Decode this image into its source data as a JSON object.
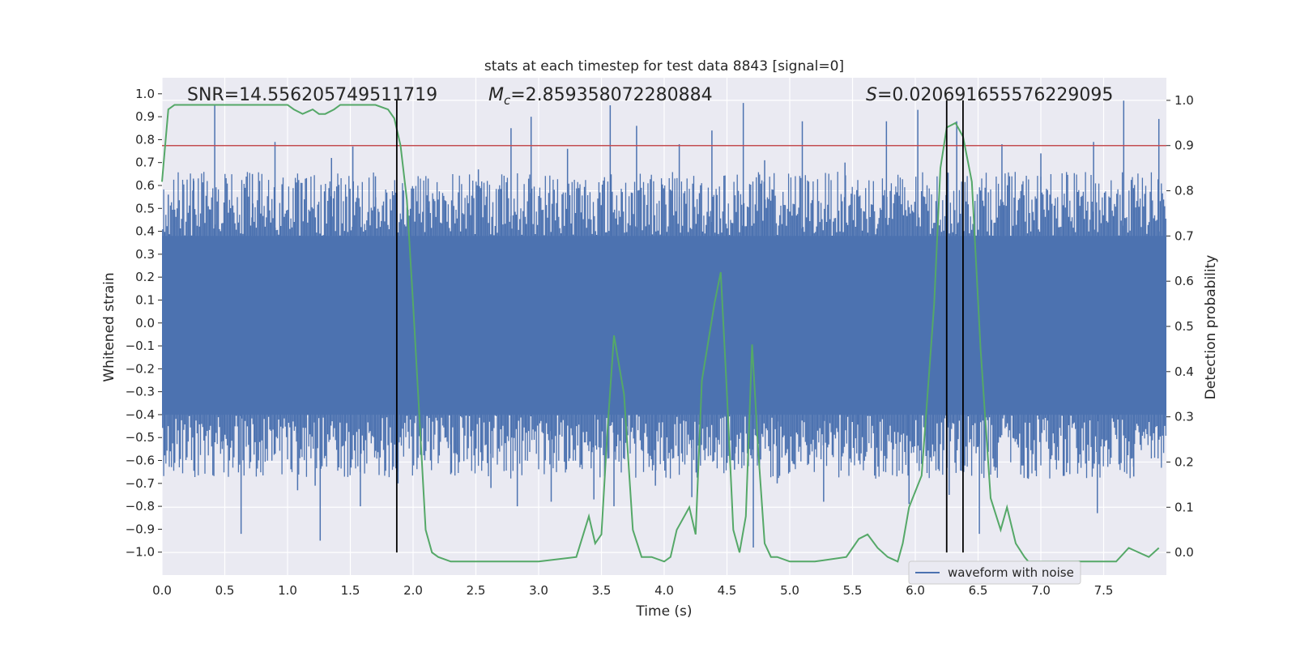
{
  "chart_data": {
    "type": "line",
    "title": "stats at each timestep for test data 8843 [signal=0]",
    "xlabel": "Time (s)",
    "ylabel_left": "Whitened strain",
    "ylabel_right": "Detection probability",
    "xlim": [
      0.0,
      8.0
    ],
    "ylim_left": [
      -1.1,
      1.07
    ],
    "ylim_right": [
      -0.05,
      1.05
    ],
    "x_ticks": [
      0.0,
      0.5,
      1.0,
      1.5,
      2.0,
      2.5,
      3.0,
      3.5,
      4.0,
      4.5,
      5.0,
      5.5,
      6.0,
      6.5,
      7.0,
      7.5
    ],
    "x_tick_labels": [
      "0.0",
      "0.5",
      "1.0",
      "1.5",
      "2.0",
      "2.5",
      "3.0",
      "3.5",
      "4.0",
      "4.5",
      "5.0",
      "5.5",
      "6.0",
      "6.5",
      "7.0",
      "7.5"
    ],
    "y_left_ticks": [
      1.0,
      0.9,
      0.8,
      0.7,
      0.6,
      0.5,
      0.4,
      0.3,
      0.2,
      0.1,
      0.0,
      -0.1,
      -0.2,
      -0.3,
      -0.4,
      -0.5,
      -0.6,
      -0.7,
      -0.8,
      -0.9,
      -1.0
    ],
    "y_left_tick_labels": [
      "1.0",
      "0.9",
      "0.8",
      "0.7",
      "0.6",
      "0.5",
      "0.4",
      "0.3",
      "0.2",
      "0.1",
      "0.0",
      "−0.1",
      "−0.2",
      "−0.3",
      "−0.4",
      "−0.5",
      "−0.6",
      "−0.7",
      "−0.8",
      "−0.9",
      "−1.0"
    ],
    "y_right_ticks": [
      1.0,
      0.9,
      0.8,
      0.7,
      0.6,
      0.5,
      0.4,
      0.3,
      0.2,
      0.1,
      0.0
    ],
    "y_right_tick_labels": [
      "1.0",
      "0.9",
      "0.8",
      "0.7",
      "0.6",
      "0.5",
      "0.4",
      "0.3",
      "0.2",
      "0.1",
      "0.0"
    ],
    "annotations": {
      "snr": "SNR=14.556205749511719",
      "mc_symbol": "M",
      "mc_subscript": "c",
      "mc_value": "=2.859358072280884",
      "s_symbol": "S",
      "s_value": "=0.020691655576229095"
    },
    "threshold": {
      "axis": "right",
      "value": 0.9,
      "color": "#c44e52"
    },
    "vertical_lines": [
      1.87,
      6.25,
      6.38
    ],
    "waveform": {
      "name": "waveform with noise",
      "color": "#4c72b0",
      "band_upper": 0.38,
      "band_lower": -0.4,
      "bursts": [
        {
          "x": 0.05,
          "y": 0.56
        },
        {
          "x": 0.25,
          "y": 0.63
        },
        {
          "x": 0.42,
          "y": 0.95
        },
        {
          "x": 0.48,
          "y": -0.55
        },
        {
          "x": 0.63,
          "y": -0.92
        },
        {
          "x": 0.72,
          "y": 0.65
        },
        {
          "x": 0.9,
          "y": 0.79
        },
        {
          "x": 1.08,
          "y": -0.73
        },
        {
          "x": 1.22,
          "y": -0.71
        },
        {
          "x": 1.26,
          "y": -0.95
        },
        {
          "x": 1.35,
          "y": 0.72
        },
        {
          "x": 1.52,
          "y": 0.77
        },
        {
          "x": 1.58,
          "y": -0.8
        },
        {
          "x": 1.7,
          "y": 0.64
        },
        {
          "x": 1.88,
          "y": -0.7
        },
        {
          "x": 2.12,
          "y": 0.63
        },
        {
          "x": 2.3,
          "y": -0.66
        },
        {
          "x": 2.52,
          "y": 0.67
        },
        {
          "x": 2.62,
          "y": -0.72
        },
        {
          "x": 2.78,
          "y": 0.85
        },
        {
          "x": 2.83,
          "y": -0.8
        },
        {
          "x": 2.94,
          "y": 0.9
        },
        {
          "x": 3.1,
          "y": -0.78
        },
        {
          "x": 3.23,
          "y": 0.76
        },
        {
          "x": 3.44,
          "y": -0.77
        },
        {
          "x": 3.57,
          "y": 0.95
        },
        {
          "x": 3.6,
          "y": -0.8
        },
        {
          "x": 3.78,
          "y": 0.86
        },
        {
          "x": 3.93,
          "y": -0.71
        },
        {
          "x": 4.12,
          "y": 0.78
        },
        {
          "x": 4.22,
          "y": -0.76
        },
        {
          "x": 4.38,
          "y": 0.84
        },
        {
          "x": 4.56,
          "y": -0.64
        },
        {
          "x": 4.63,
          "y": 0.96
        },
        {
          "x": 4.71,
          "y": -0.98
        },
        {
          "x": 4.8,
          "y": 0.71
        },
        {
          "x": 4.9,
          "y": -0.7
        },
        {
          "x": 5.1,
          "y": 0.88
        },
        {
          "x": 5.27,
          "y": -0.78
        },
        {
          "x": 5.44,
          "y": 0.7
        },
        {
          "x": 5.55,
          "y": -0.6
        },
        {
          "x": 5.77,
          "y": 0.88
        },
        {
          "x": 5.95,
          "y": -0.79
        },
        {
          "x": 6.02,
          "y": 0.93
        },
        {
          "x": 6.27,
          "y": -0.75
        },
        {
          "x": 6.33,
          "y": 0.88
        },
        {
          "x": 6.51,
          "y": -0.92
        },
        {
          "x": 6.69,
          "y": 0.78
        },
        {
          "x": 6.9,
          "y": -0.68
        },
        {
          "x": 7.0,
          "y": 0.74
        },
        {
          "x": 7.14,
          "y": -0.6
        },
        {
          "x": 7.42,
          "y": 0.79
        },
        {
          "x": 7.45,
          "y": -0.83
        },
        {
          "x": 7.66,
          "y": 0.97
        },
        {
          "x": 7.74,
          "y": -0.67
        },
        {
          "x": 7.94,
          "y": 0.89
        }
      ]
    },
    "probability": {
      "color": "#55a868",
      "x": [
        0.0,
        0.05,
        0.1,
        0.2,
        0.4,
        0.6,
        0.8,
        1.0,
        1.05,
        1.12,
        1.2,
        1.25,
        1.3,
        1.37,
        1.42,
        1.5,
        1.6,
        1.7,
        1.8,
        1.85,
        1.9,
        1.95,
        2.0,
        2.05,
        2.1,
        2.15,
        2.2,
        2.3,
        2.5,
        3.0,
        3.3,
        3.4,
        3.45,
        3.5,
        3.55,
        3.6,
        3.68,
        3.75,
        3.82,
        3.9,
        4.0,
        4.05,
        4.1,
        4.2,
        4.25,
        4.3,
        4.4,
        4.45,
        4.5,
        4.55,
        4.6,
        4.65,
        4.7,
        4.75,
        4.8,
        4.85,
        4.9,
        5.0,
        5.2,
        5.45,
        5.55,
        5.62,
        5.7,
        5.78,
        5.86,
        5.9,
        5.95,
        6.05,
        6.15,
        6.2,
        6.25,
        6.32,
        6.38,
        6.45,
        6.52,
        6.6,
        6.68,
        6.73,
        6.8,
        6.87,
        6.9,
        7.0,
        7.2,
        7.4,
        7.6,
        7.7,
        7.78,
        7.86,
        7.94
      ],
      "y": [
        0.82,
        0.98,
        0.99,
        0.99,
        0.99,
        0.99,
        0.99,
        0.99,
        0.98,
        0.97,
        0.98,
        0.97,
        0.97,
        0.98,
        0.99,
        0.99,
        0.99,
        0.99,
        0.98,
        0.96,
        0.9,
        0.78,
        0.55,
        0.3,
        0.05,
        0.0,
        -0.01,
        -0.02,
        -0.02,
        -0.02,
        -0.01,
        0.08,
        0.02,
        0.04,
        0.28,
        0.48,
        0.35,
        0.05,
        -0.01,
        -0.01,
        -0.02,
        -0.01,
        0.05,
        0.1,
        0.04,
        0.38,
        0.55,
        0.62,
        0.35,
        0.05,
        0.0,
        0.08,
        0.46,
        0.22,
        0.02,
        -0.01,
        -0.01,
        -0.02,
        -0.02,
        -0.01,
        0.03,
        0.04,
        0.01,
        -0.01,
        -0.02,
        0.02,
        0.1,
        0.17,
        0.55,
        0.85,
        0.94,
        0.95,
        0.92,
        0.82,
        0.45,
        0.12,
        0.05,
        0.1,
        0.02,
        -0.01,
        -0.02,
        -0.02,
        -0.02,
        -0.02,
        -0.02,
        0.01,
        0.0,
        -0.01,
        0.01
      ]
    },
    "legend": {
      "label": "waveform with noise",
      "placement": "lower-center-right"
    },
    "grid": true
  }
}
